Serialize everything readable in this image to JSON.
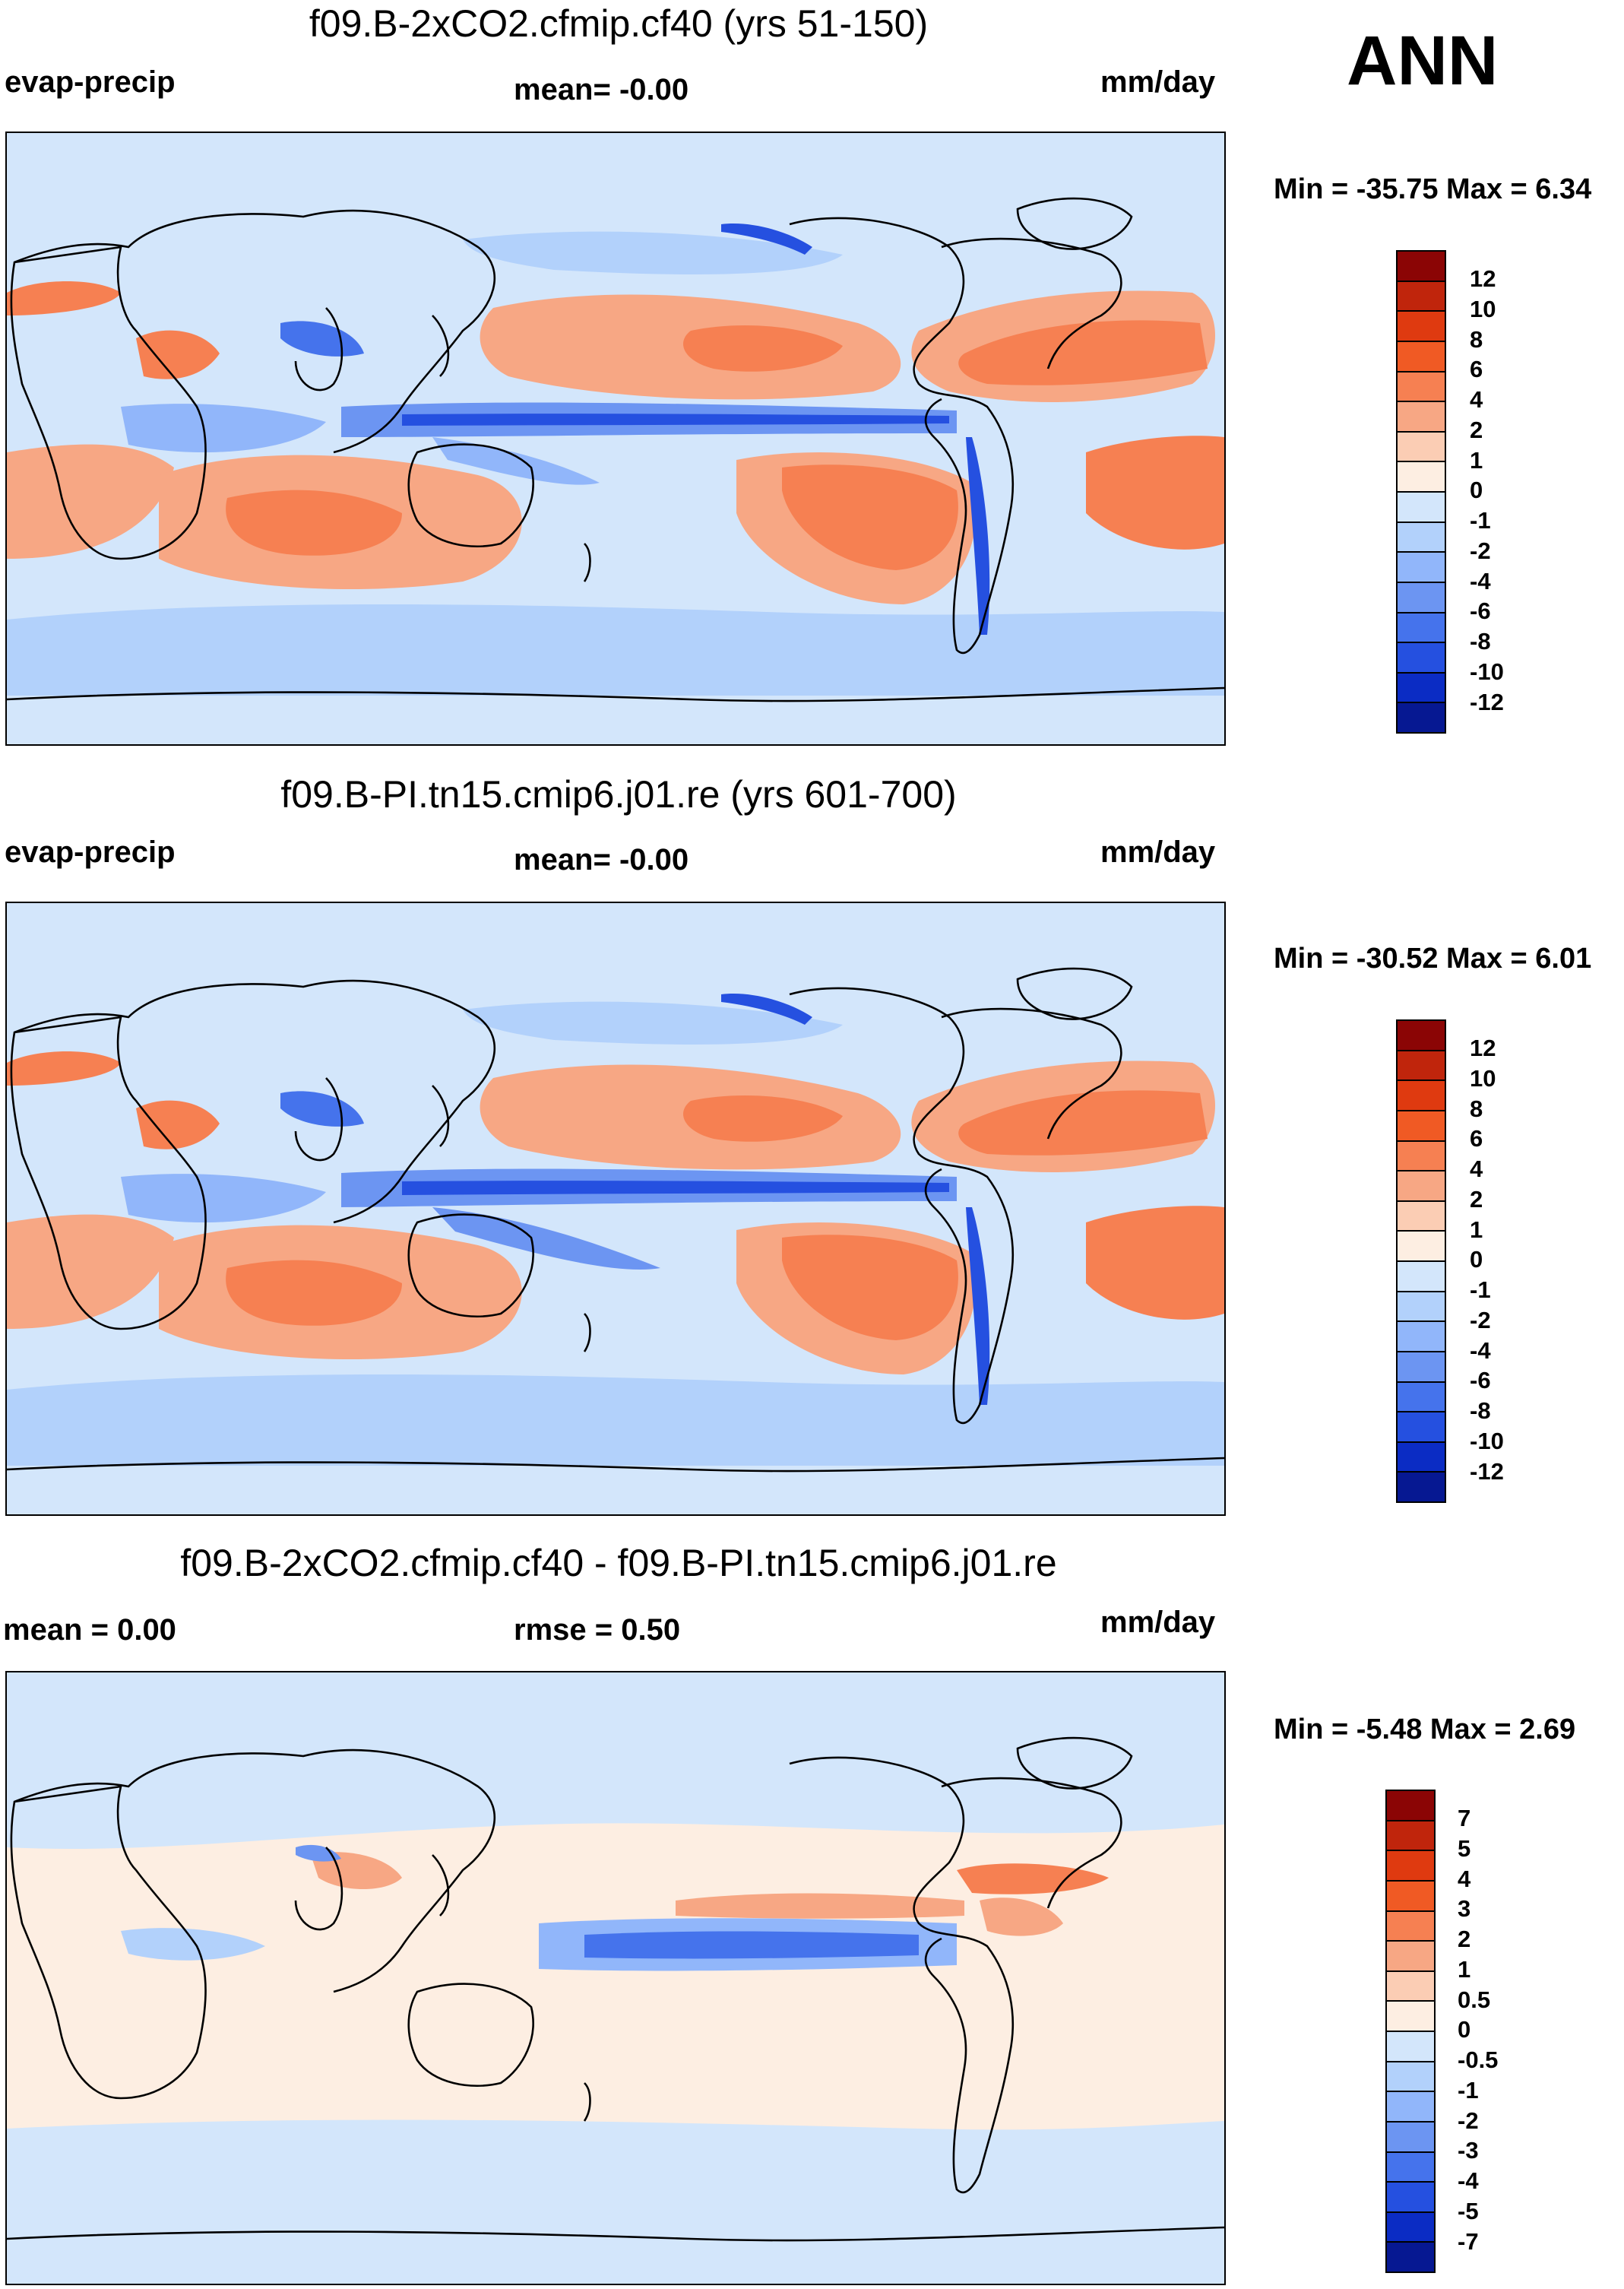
{
  "season": "ANN",
  "panels": [
    {
      "title": "f09.B-2xCO2.cfmip.cf40 (yrs 51-150)",
      "left_label": "evap-precip",
      "center_label": "mean=  -0.00",
      "right_label": "mm/day",
      "min_max": "Min = -35.75 Max =   6.34",
      "levels": [
        "12",
        "10",
        "8",
        "6",
        "4",
        "2",
        "1",
        "0",
        "-1",
        "-2",
        "-4",
        "-6",
        "-8",
        "-10",
        "-12"
      ],
      "colors": [
        "#8b0505",
        "#c0250c",
        "#df3a10",
        "#f05a24",
        "#f68052",
        "#f7a784",
        "#fbcdb4",
        "#fdeee2",
        "#d3e6fb",
        "#b2d1fb",
        "#91b6fa",
        "#6c95f2",
        "#4573ec",
        "#2550e0",
        "#0b2cc4",
        "#061892"
      ]
    },
    {
      "title": "f09.B-PI.tn15.cmip6.j01.re (yrs 601-700)",
      "left_label": "evap-precip",
      "center_label": "mean=  -0.00",
      "right_label": "mm/day",
      "min_max": "Min = -30.52 Max =   6.01",
      "levels": [
        "12",
        "10",
        "8",
        "6",
        "4",
        "2",
        "1",
        "0",
        "-1",
        "-2",
        "-4",
        "-6",
        "-8",
        "-10",
        "-12"
      ],
      "colors": [
        "#8b0505",
        "#c0250c",
        "#df3a10",
        "#f05a24",
        "#f68052",
        "#f7a784",
        "#fbcdb4",
        "#fdeee2",
        "#d3e6fb",
        "#b2d1fb",
        "#91b6fa",
        "#6c95f2",
        "#4573ec",
        "#2550e0",
        "#0b2cc4",
        "#061892"
      ]
    },
    {
      "title": "f09.B-2xCO2.cfmip.cf40 - f09.B-PI.tn15.cmip6.j01.re",
      "left_label": "mean =   0.00",
      "center_label": "rmse =   0.50",
      "right_label": "mm/day",
      "min_max": "Min =  -5.48 Max =   2.69",
      "levels": [
        "7",
        "5",
        "4",
        "3",
        "2",
        "1",
        "0.5",
        "0",
        "-0.5",
        "-1",
        "-2",
        "-3",
        "-4",
        "-5",
        "-7"
      ],
      "colors": [
        "#8b0505",
        "#c0250c",
        "#df3a10",
        "#f05a24",
        "#f68052",
        "#f7a784",
        "#fbcdb4",
        "#fdeee2",
        "#d3e6fb",
        "#b2d1fb",
        "#91b6fa",
        "#6c95f2",
        "#4573ec",
        "#2550e0",
        "#0b2cc4",
        "#061892"
      ]
    }
  ]
}
